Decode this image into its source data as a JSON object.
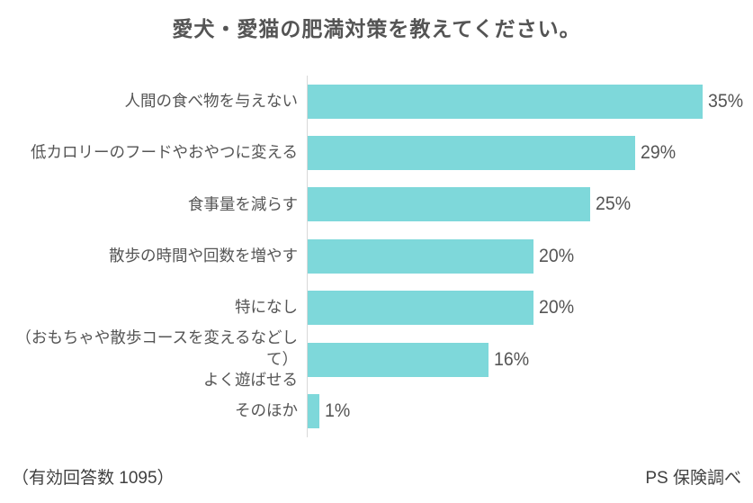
{
  "title": "愛犬・愛猫の肥満対策を教えてください。",
  "footer": {
    "left": "（有効回答数 1095）",
    "right": "PS 保険調べ"
  },
  "chart_data": {
    "type": "bar",
    "orientation": "horizontal",
    "title": "愛犬・愛猫の肥満対策を教えてください。",
    "categories": [
      "人間の食べ物を与えない",
      "低カロリーのフードやおやつに変える",
      "食事量を減らす",
      "散歩の時間や回数を増やす",
      "特になし",
      "（おもちゃや散歩コースを変えるなどして）\nよく遊ばせる",
      "そのほか"
    ],
    "values": [
      35,
      29,
      25,
      20,
      20,
      16,
      1
    ],
    "value_labels": [
      "35%",
      "29%",
      "25%",
      "20%",
      "20%",
      "16%",
      "1%"
    ],
    "xlabel": "",
    "ylabel": "",
    "xlim": [
      0,
      35
    ],
    "grid": false,
    "legend": false,
    "bar_color": "#7ED8DA",
    "axis_line_color": "#D9D9D9",
    "text_color": "#555555",
    "annotations": [
      "（有効回答数 1095）",
      "PS 保険調べ"
    ]
  }
}
